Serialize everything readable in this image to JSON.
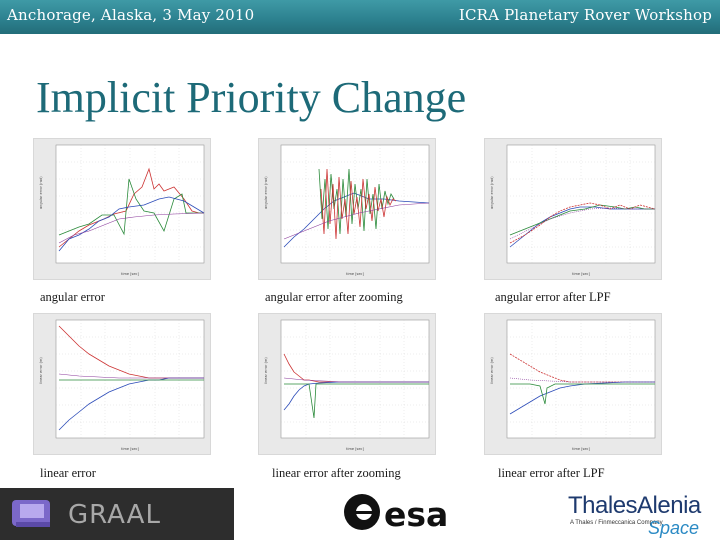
{
  "header": {
    "left": "Anchorage, Alaska, 3 May 2010",
    "right": "ICRA Planetary Rover Workshop",
    "color": "#2d8290"
  },
  "slide": {
    "title": "Implicit Priority Change"
  },
  "plots": [
    {
      "caption": "angular error",
      "y_label": "angular error (rad)",
      "x_label": "time [sec]",
      "x_ticks": [
        "0",
        "50",
        "100",
        "150",
        "200",
        "250",
        "300"
      ],
      "y_ticks": [
        "0.15",
        "0.1",
        "0.05",
        "0",
        "-0.05",
        "-0.1",
        "-0.15"
      ]
    },
    {
      "caption": "angular error after zooming",
      "y_label": "angular error (rad)",
      "x_label": "time [sec]",
      "x_ticks": [
        "0",
        "50",
        "100",
        "150",
        "200",
        "250",
        "300",
        "350",
        "400",
        "450",
        "500"
      ],
      "y_ticks": [
        "0.15",
        "0.1",
        "0.05",
        "0",
        "-0.05",
        "-0.1",
        "-0.15"
      ]
    },
    {
      "caption": "angular error after LPF",
      "y_label": "angular error (rad)",
      "x_label": "time [sec]",
      "x_ticks": [
        "0",
        "50",
        "100",
        "150",
        "200",
        "250",
        "300",
        "350",
        "400",
        "420"
      ],
      "y_ticks": [
        "0.2",
        "0.1",
        "0.05",
        "0",
        "-0.05",
        "-0.1",
        "-0.15"
      ]
    },
    {
      "caption": "linear error",
      "y_label": "linear error (m)",
      "x_label": "time [sec]",
      "x_ticks": [
        "0",
        "50",
        "100",
        "150",
        "200",
        "250",
        "300"
      ],
      "y_ticks": [
        "0.15",
        "0.1",
        "0.05",
        "0",
        "-0.05",
        "-0.1",
        "-0.15"
      ]
    },
    {
      "caption": "linear error after zooming",
      "y_label": "linear error (m)",
      "x_label": "time [sec]",
      "x_ticks": [
        "0",
        "50",
        "100",
        "150",
        "200",
        "250",
        "300",
        "350",
        "400",
        "450",
        "500"
      ],
      "y_ticks": [
        "0.2",
        "0.1",
        "0.05",
        "0",
        "-0.05",
        "-0.1",
        "-0.15"
      ]
    },
    {
      "caption": "linear error after LPF",
      "y_label": "linear error (m)",
      "x_label": "time [sec]",
      "x_ticks": [
        "0",
        "50",
        "100",
        "150",
        "200",
        "250",
        "300",
        "350",
        "400",
        "420"
      ],
      "y_ticks": [
        "0.2",
        "0.1",
        "0.05",
        "0",
        "-0.05",
        "-0.1",
        "-0.15"
      ]
    }
  ],
  "footer": {
    "graal_label": "GRAAL",
    "esa_label": "esa",
    "thales_label": "ThalesAlenia",
    "thales_tagline": "A Thales / Finmeccanica Company",
    "thales_space": "Space"
  }
}
